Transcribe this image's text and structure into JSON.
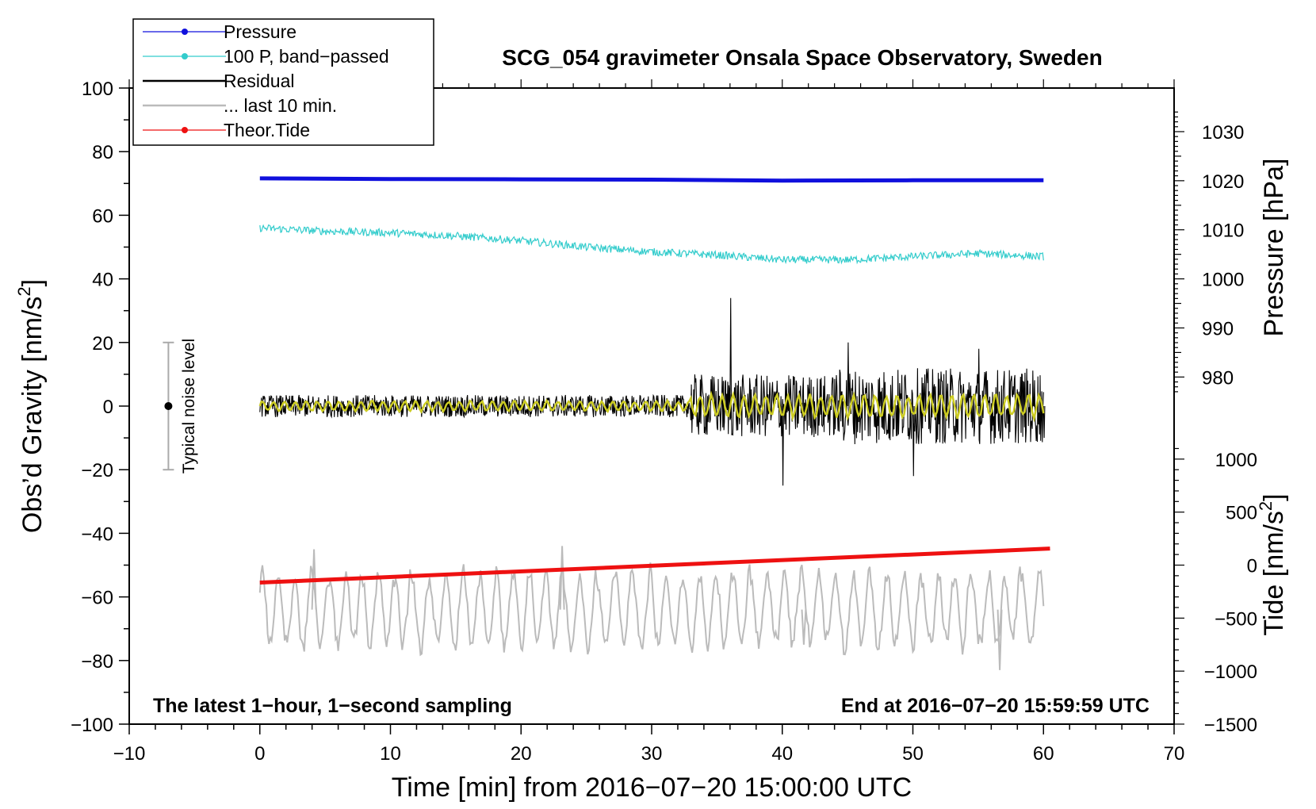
{
  "chart_data": {
    "type": "line",
    "title": "SCG_054 gravimeter Onsala Space Observatory, Sweden",
    "xlabel": "Time [min] from 2016−07−20 15:00:00 UTC",
    "xlim": [
      -10,
      70
    ],
    "x_ticks": [
      -10,
      0,
      10,
      20,
      30,
      40,
      50,
      60,
      70
    ],
    "x_tick_labels": [
      "−10",
      "0",
      "10",
      "20",
      "30",
      "40",
      "50",
      "60",
      "70"
    ],
    "left_axis": {
      "label_main": "Obs’d Gravity [nm/s",
      "label_sup": "2",
      "label_end": "]",
      "ylim": [
        -100,
        100
      ],
      "ticks": [
        -100,
        -80,
        -60,
        -40,
        -20,
        0,
        20,
        40,
        60,
        80,
        100
      ],
      "tick_labels": [
        "−100",
        "−80",
        "−60",
        "−40",
        "−20",
        "0",
        "20",
        "40",
        "60",
        "80",
        "100"
      ]
    },
    "pressure_axis": {
      "label": "Pressure [hPa]",
      "ticks": [
        980,
        990,
        1000,
        1010,
        1020,
        1030
      ],
      "tick_labels": [
        "980",
        "990",
        "1000",
        "1010",
        "1020",
        "1030"
      ],
      "gravity_at_1000": 40,
      "gravity_per_hpa": 1.543
    },
    "tide_axis": {
      "label_main": "Tide [nm/s",
      "label_sup": "2",
      "label_end": "]",
      "ticks": [
        -1500,
        -1000,
        -500,
        0,
        500,
        1000
      ],
      "tick_labels": [
        "−1500",
        "−1000",
        "−500",
        "0",
        "500",
        "1000"
      ],
      "gravity_at_0": -50,
      "gravity_per_unit": 0.03333
    },
    "legend": [
      {
        "label": "Pressure",
        "color": "#1010dd",
        "marker": true
      },
      {
        "label": "100 P, band−passed",
        "color": "#33cccc",
        "marker": true
      },
      {
        "label": "Residual",
        "color": "#000000",
        "marker": false
      },
      {
        "label": "... last 10 min.",
        "color": "#bbbbbb",
        "marker": false
      },
      {
        "label": "Theor.Tide",
        "color": "#ee1111",
        "marker": true
      }
    ],
    "series": [
      {
        "name": "Pressure",
        "color": "#1010dd",
        "axis": "gravity",
        "x": [
          0,
          10,
          20,
          30,
          40,
          50,
          60
        ],
        "values": [
          71.6,
          71.4,
          71.3,
          71.2,
          70.9,
          71.0,
          71.0
        ]
      },
      {
        "name": "100 P, band−passed",
        "color": "#33cccc",
        "axis": "gravity",
        "x": [
          0,
          5,
          10,
          15,
          20,
          25,
          30,
          35,
          40,
          45,
          50,
          55,
          60
        ],
        "values": [
          56,
          55,
          54.5,
          53.5,
          52,
          50,
          48.5,
          47.5,
          46,
          46,
          47,
          48,
          47
        ]
      },
      {
        "name": "Residual",
        "color": "#000000",
        "axis": "gravity",
        "x": [
          0,
          33,
          36,
          40,
          45,
          50,
          55,
          60
        ],
        "values": [
          0,
          0,
          34,
          -25,
          20,
          -22,
          18,
          -10
        ]
      },
      {
        "name": "... last 10 min.",
        "color": "#bbbbbb",
        "axis": "gravity",
        "x": [
          0,
          4,
          23,
          41.5,
          56.5,
          60
        ],
        "values": [
          -58,
          -45,
          -44,
          -75,
          -83,
          -67
        ]
      },
      {
        "name": "Theor.Tide",
        "color": "#ee1111",
        "axis": "gravity",
        "x": [
          0,
          60.5
        ],
        "values": [
          -55.5,
          -44.8
        ]
      }
    ],
    "noise_bar": {
      "label": "Typical noise level",
      "x": -7,
      "range": [
        -20,
        20
      ],
      "center": 0
    },
    "annotations": {
      "bottom_left": "The latest 1−hour, 1−second sampling",
      "bottom_right": "End at 2016−07−20 15:59:59 UTC"
    },
    "grid": false,
    "legend_position": "top-left"
  }
}
